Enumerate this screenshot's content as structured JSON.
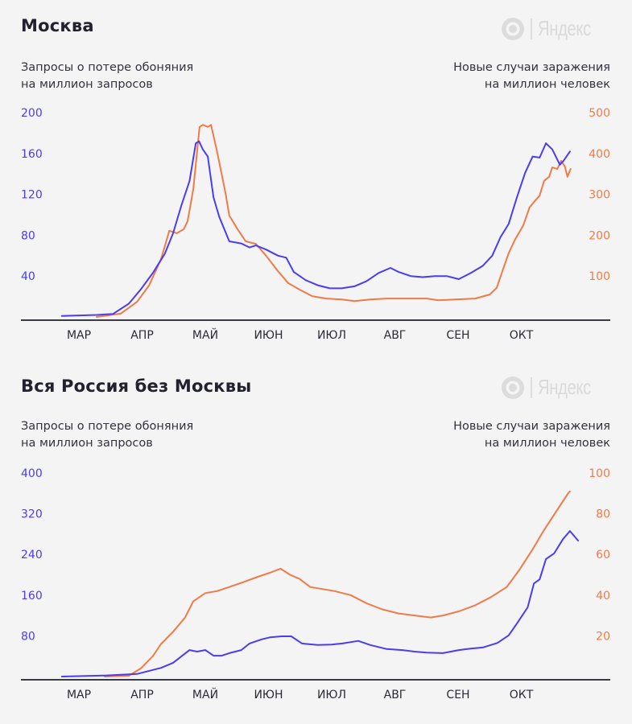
{
  "brand": {
    "name": "Яндекс"
  },
  "colors": {
    "searches": "#4b3cf2",
    "cases": "#f07a48",
    "axis": "#3a3a44",
    "background": "#f4f4f4"
  },
  "chart_data": [
    {
      "type": "line",
      "title": "Москва",
      "ylabel_left": [
        "Запросы о потере обоняния",
        "на миллион запросов"
      ],
      "ylabel_right": [
        "Новые случаи заражения",
        "на миллион человек"
      ],
      "x_ticks": [
        "МАР",
        "АПР",
        "МАЙ",
        "ИЮН",
        "ИЮЛ",
        "АВГ",
        "СЕН",
        "ОКТ"
      ],
      "x_unit": "months since March (0 = МАР tick)",
      "xlim": [
        -0.5,
        8.5
      ],
      "y_left": {
        "ticks": [
          "40",
          "80",
          "120",
          "160",
          "200"
        ],
        "lim": [
          0,
          200
        ]
      },
      "y_right": {
        "ticks": [
          "100",
          "200",
          "300",
          "400",
          "500"
        ],
        "lim": [
          0,
          500
        ]
      },
      "grid": false,
      "legend": "none",
      "series": [
        {
          "name": "Запросы о потере обоняния на миллион запросов",
          "axis": "left",
          "color": "#4b3cf2",
          "x": [
            -0.27,
            0.28,
            0.54,
            0.79,
            0.98,
            1.17,
            1.36,
            1.49,
            1.62,
            1.75,
            1.85,
            1.9,
            1.96,
            2.04,
            2.13,
            2.22,
            2.38,
            2.57,
            2.7,
            2.8,
            2.96,
            3.15,
            3.28,
            3.4,
            3.59,
            3.78,
            3.97,
            4.16,
            4.36,
            4.55,
            4.74,
            4.93,
            5.06,
            5.25,
            5.44,
            5.63,
            5.82,
            6.01,
            6.2,
            6.39,
            6.54,
            6.67,
            6.8,
            6.93,
            7.06,
            7.18,
            7.29,
            7.39,
            7.49,
            7.61,
            7.67,
            7.77
          ],
          "y": [
            1,
            2,
            3,
            13,
            27,
            43,
            62,
            82,
            109,
            133,
            170,
            172,
            164,
            157,
            117,
            98,
            74,
            72,
            68,
            70,
            66,
            60,
            58,
            44,
            36,
            31,
            28,
            28,
            30,
            35,
            43,
            48,
            44,
            40,
            39,
            40,
            40,
            37,
            43,
            50,
            60,
            78,
            91,
            117,
            141,
            157,
            156,
            170,
            164,
            149,
            153,
            162
          ]
        },
        {
          "name": "Новые случаи заражения на миллион человек",
          "axis": "right",
          "color": "#f07a48",
          "x": [
            0.28,
            0.66,
            0.92,
            1.11,
            1.3,
            1.43,
            1.55,
            1.66,
            1.72,
            1.81,
            1.91,
            1.96,
            2.04,
            2.09,
            2.19,
            2.32,
            2.38,
            2.51,
            2.64,
            2.8,
            2.96,
            3.15,
            3.31,
            3.49,
            3.69,
            3.91,
            4.16,
            4.36,
            4.61,
            4.87,
            5.25,
            5.5,
            5.69,
            5.95,
            6.27,
            6.5,
            6.61,
            6.71,
            6.8,
            6.9,
            7.03,
            7.13,
            7.21,
            7.29,
            7.36,
            7.44,
            7.49,
            7.57,
            7.63,
            7.69,
            7.73,
            7.78
          ],
          "y": [
            0,
            8,
            37,
            77,
            142,
            211,
            205,
            215,
            234,
            313,
            465,
            470,
            465,
            470,
            402,
            303,
            248,
            215,
            185,
            179,
            150,
            112,
            83,
            67,
            51,
            45,
            43,
            39,
            43,
            45,
            45,
            45,
            41,
            43,
            45,
            55,
            71,
            116,
            156,
            189,
            224,
            268,
            283,
            297,
            333,
            343,
            366,
            362,
            382,
            368,
            343,
            362
          ]
        }
      ]
    },
    {
      "type": "line",
      "title": "Вся Россия без Москвы",
      "ylabel_left": [
        "Запросы о потере обоняния",
        "на миллион запросов"
      ],
      "ylabel_right": [
        "Новые случаи заражения",
        "на миллион человек"
      ],
      "x_ticks": [
        "МАР",
        "АПР",
        "МАЙ",
        "ИЮН",
        "ИЮЛ",
        "АВГ",
        "СЕН",
        "ОКТ"
      ],
      "x_unit": "months since March (0 = МАР tick)",
      "xlim": [
        -0.5,
        8.5
      ],
      "y_left": {
        "ticks": [
          "80",
          "160",
          "240",
          "320",
          "400"
        ],
        "lim": [
          0,
          400
        ]
      },
      "y_right": {
        "ticks": [
          "20",
          "40",
          "60",
          "80",
          "100"
        ],
        "lim": [
          0,
          100
        ]
      },
      "grid": false,
      "legend": "none",
      "series": [
        {
          "name": "Запросы о потере обоняния на миллион запросов",
          "axis": "left",
          "color": "#4b3cf2",
          "x": [
            -0.27,
            0.41,
            0.92,
            1.3,
            1.49,
            1.75,
            1.87,
            2.0,
            2.13,
            2.26,
            2.38,
            2.57,
            2.7,
            2.89,
            3.02,
            3.21,
            3.36,
            3.53,
            3.53,
            3.78,
            4.0,
            4.17,
            4.42,
            4.61,
            4.87,
            5.12,
            5.31,
            5.5,
            5.76,
            6.01,
            6.2,
            6.39,
            6.62,
            6.8,
            6.93,
            7.1,
            7.2,
            7.29,
            7.39,
            7.52,
            7.66,
            7.77,
            7.9
          ],
          "y": [
            0,
            2,
            5,
            17,
            27,
            52,
            49,
            52,
            41,
            41,
            46,
            52,
            65,
            73,
            77,
            79,
            79,
            65,
            65,
            62,
            63,
            65,
            70,
            62,
            54,
            52,
            49,
            47,
            46,
            52,
            55,
            57,
            66,
            81,
            104,
            136,
            183,
            191,
            231,
            242,
            270,
            286,
            267
          ],
          "note": "approximate readout"
        },
        {
          "name": "Новые случаи заражения на миллион человек",
          "axis": "right",
          "color": "#f07a48",
          "x": [
            0.41,
            0.79,
            0.98,
            1.17,
            1.3,
            1.49,
            1.68,
            1.81,
            2.0,
            2.19,
            2.38,
            2.57,
            2.83,
            3.02,
            3.19,
            3.34,
            3.49,
            3.66,
            3.85,
            4.04,
            4.3,
            4.55,
            4.8,
            5.06,
            5.31,
            5.57,
            5.76,
            6.01,
            6.27,
            6.52,
            6.77,
            6.96,
            7.17,
            7.36,
            7.55,
            7.74,
            7.77
          ],
          "y": [
            0,
            0.4,
            4,
            10,
            16,
            22,
            29,
            37,
            41,
            42,
            44,
            46,
            49,
            51,
            53,
            50,
            48,
            44,
            43,
            42,
            40,
            36,
            33,
            31,
            30,
            29,
            30,
            32,
            35,
            39,
            44,
            52,
            62,
            72,
            81,
            90,
            91
          ]
        }
      ]
    }
  ]
}
